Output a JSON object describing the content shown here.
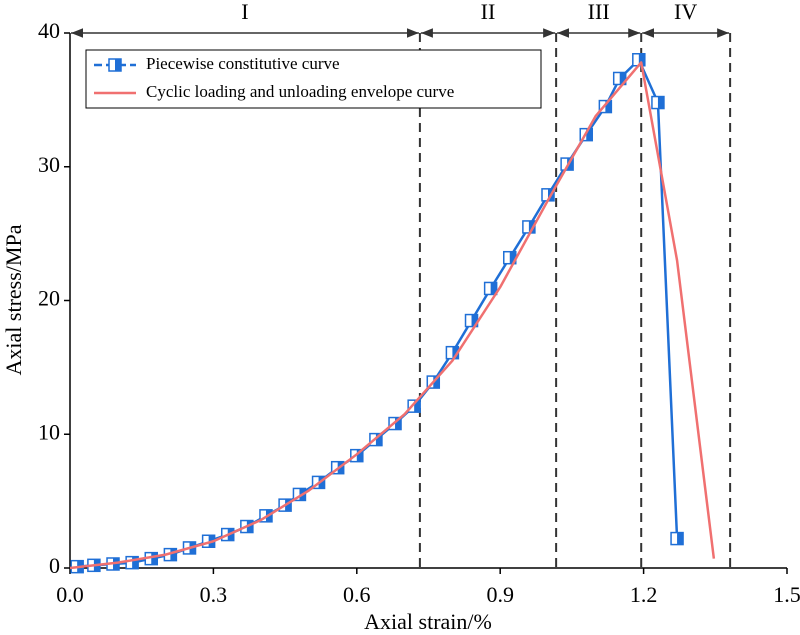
{
  "chart_data": {
    "type": "line",
    "x_label": "Axial strain/%",
    "y_label": "Axial stress/MPa",
    "xlim": [
      0,
      1.5
    ],
    "ylim": [
      0,
      40
    ],
    "xticks": [
      {
        "value": 0,
        "label": "0.0"
      },
      0.3,
      0.6,
      0.9,
      1.2,
      1.5
    ],
    "yticks": [
      0,
      10,
      20,
      30,
      40
    ],
    "legend": "upper left",
    "series": [
      {
        "name": "Piecewise constitutive curve",
        "color": "#1f6fd6",
        "marker": "half-square",
        "x": [
          0.015,
          0.05,
          0.09,
          0.13,
          0.17,
          0.21,
          0.25,
          0.29,
          0.33,
          0.37,
          0.41,
          0.45,
          0.48,
          0.52,
          0.56,
          0.6,
          0.64,
          0.68,
          0.72,
          0.76,
          0.8,
          0.84,
          0.88,
          0.92,
          0.96,
          1.0,
          1.04,
          1.08,
          1.12,
          1.15,
          1.19,
          1.23,
          1.27
        ],
        "values": [
          0.1,
          0.2,
          0.3,
          0.4,
          0.7,
          1.0,
          1.5,
          2.0,
          2.5,
          3.1,
          3.9,
          4.7,
          5.5,
          6.4,
          7.5,
          8.4,
          9.6,
          10.8,
          12.1,
          13.9,
          16.1,
          18.5,
          20.9,
          23.2,
          25.5,
          27.9,
          30.2,
          32.4,
          34.5,
          36.6,
          38.0,
          34.8,
          2.2
        ]
      },
      {
        "name": "Cyclic loading and unloading envelope curve",
        "color": "#f07070",
        "x": [
          0,
          0.1,
          0.2,
          0.3,
          0.4,
          0.5,
          0.6,
          0.7,
          0.8,
          0.9,
          1.0,
          1.1,
          1.195,
          1.27,
          1.347
        ],
        "values": [
          0,
          0.4,
          1.0,
          2.0,
          3.6,
          5.8,
          8.5,
          11.5,
          15.5,
          21.0,
          27.5,
          33.8,
          37.8,
          23.0,
          0.7
        ]
      }
    ],
    "stages": {
      "boundaries": [
        0,
        0.732,
        1.017,
        1.195,
        1.381
      ],
      "labels": [
        "I",
        "II",
        "III",
        "IV"
      ]
    }
  }
}
